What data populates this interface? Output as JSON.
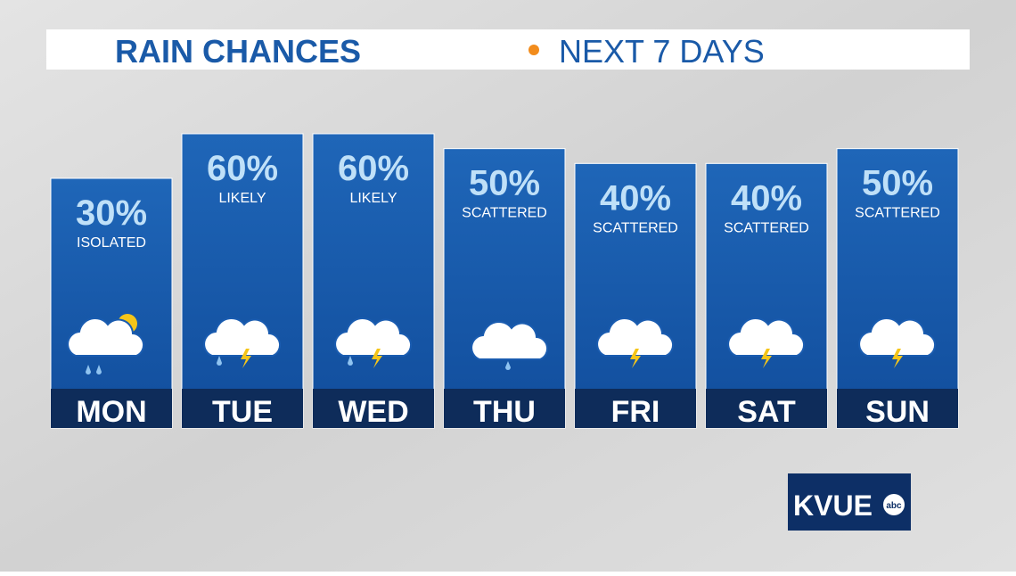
{
  "chart_data": {
    "type": "bar",
    "title": "RAIN CHANCES",
    "subtitle": "NEXT 7 DAYS",
    "categories": [
      "MON",
      "TUE",
      "WED",
      "THU",
      "FRI",
      "SAT",
      "SUN"
    ],
    "values": [
      30,
      60,
      60,
      50,
      40,
      40,
      50
    ],
    "value_labels": [
      "30%",
      "60%",
      "60%",
      "50%",
      "40%",
      "40%",
      "50%"
    ],
    "descriptions": [
      "ISOLATED",
      "LIKELY",
      "LIKELY",
      "SCATTERED",
      "SCATTERED",
      "SCATTERED",
      "SCATTERED"
    ],
    "color": "#1a5cb0"
  },
  "logo": {
    "name": "KVUE",
    "network": "abc"
  }
}
